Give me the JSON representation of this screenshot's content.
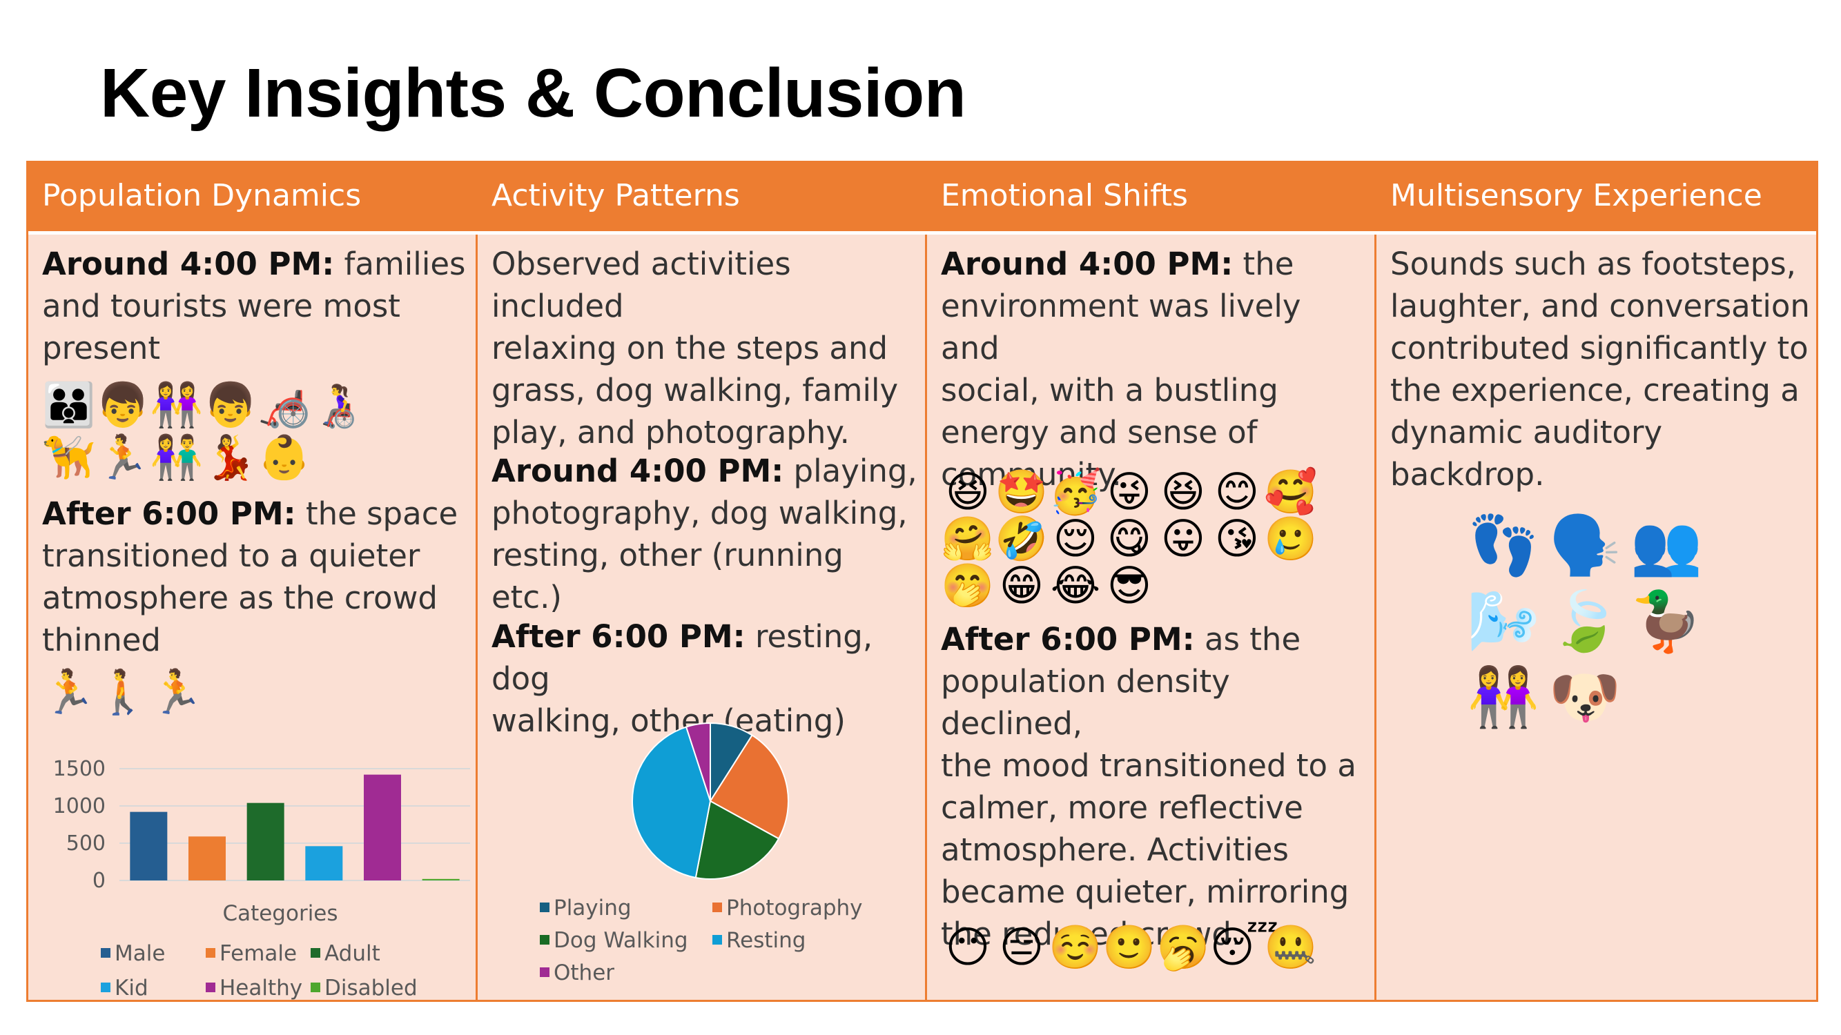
{
  "title": "Key Insights & Conclusion",
  "columns": [
    {
      "header": "Population Dynamics",
      "p1_bold": "Around 4:00 PM:",
      "p1_lines": [
        " families",
        "and tourists were most",
        "present"
      ],
      "emoji_row1": [
        "👪",
        "👦",
        "👭",
        "👦",
        "🦽",
        "👩‍🦽"
      ],
      "emoji_row2": [
        "🦮",
        "🏃",
        "👫",
        "💃",
        "👶"
      ],
      "p2_bold": "After 6:00 PM:",
      "p2_lines": [
        " the space",
        "transitioned to a quieter",
        "atmosphere as the crowd",
        "thinned"
      ],
      "emoji_row3": [
        "🏃",
        "🚶",
        "🏃"
      ]
    },
    {
      "header": "Activity Patterns",
      "p1_lines": [
        "Observed activities included",
        "relaxing on the steps and",
        "grass, dog walking, family",
        "play, and photography."
      ],
      "p2_bold": "Around 4:00 PM:",
      "p2_lines": [
        " playing,",
        "photography, dog walking,",
        "resting, other (running etc.)"
      ],
      "p3_bold": "After 6:00 PM:",
      "p3_lines": [
        " resting, dog",
        "walking, other (eating)"
      ]
    },
    {
      "header": "Emotional Shifts",
      "p1_bold": "Around 4:00 PM:",
      "p1_lines": [
        " the",
        "environment was lively and",
        "social, with a bustling",
        "energy and sense of",
        "community."
      ],
      "emoji_row1": [
        "😆",
        "🤩",
        "🥳",
        "😜",
        "😆",
        "😊",
        "🥰"
      ],
      "emoji_row2": [
        "🤗",
        "🤣",
        "😌",
        "😋",
        "😛",
        "😘",
        "🥲"
      ],
      "emoji_row3": [
        "🤭",
        "😁",
        "😂",
        "😎"
      ],
      "p2_bold": "After 6:00 PM:",
      "p2_lines": [
        " as the",
        "population density declined,",
        "the mood transitioned to a",
        "calmer, more reflective",
        "atmosphere. Activities",
        "became quieter, mirroring",
        "the reduced crowd."
      ],
      "emoji_row4": [
        "😶",
        "😑",
        "☺️",
        "🙂",
        "🥱",
        "😴",
        "🤐"
      ]
    },
    {
      "header": "Multisensory Experience",
      "p1_lines": [
        "Sounds such as footsteps,",
        "laughter, and conversation",
        "contributed significantly to",
        "the experience, creating a",
        "dynamic auditory backdrop."
      ],
      "emoji_row1": [
        "👣",
        "🗣️",
        "👥"
      ],
      "emoji_row2": [
        "🌬️",
        "🍃",
        "🦆"
      ],
      "emoji_row3": [
        "👭",
        "🐶"
      ]
    }
  ],
  "chart_data": [
    {
      "type": "bar",
      "categories": [
        "Male",
        "Female",
        "Adult",
        "Kid",
        "Healthy",
        "Disabled"
      ],
      "values": [
        920,
        590,
        1040,
        460,
        1420,
        20
      ],
      "colors": [
        "#255E91",
        "#ED7D31",
        "#1E6B2B",
        "#1BA1DE",
        "#A02B93",
        "#4EA72E"
      ],
      "xlabel": "Categories",
      "yticks": [
        "1500",
        "1000",
        "500",
        "0"
      ],
      "ylim": [
        0,
        1500
      ],
      "legend": [
        "Male",
        "Female",
        "Adult",
        "Kid",
        "Healthy",
        "Disabled"
      ]
    },
    {
      "type": "pie",
      "categories": [
        "Playing",
        "Photography",
        "Dog Walking",
        "Resting",
        "Other"
      ],
      "values": [
        9,
        24,
        20,
        42,
        5
      ],
      "colors": [
        "#156082",
        "#E97132",
        "#196B24",
        "#0F9ED5",
        "#A02B93"
      ],
      "legend": [
        "Playing",
        "Photography",
        "Dog Walking",
        "Resting",
        "Other"
      ]
    }
  ]
}
